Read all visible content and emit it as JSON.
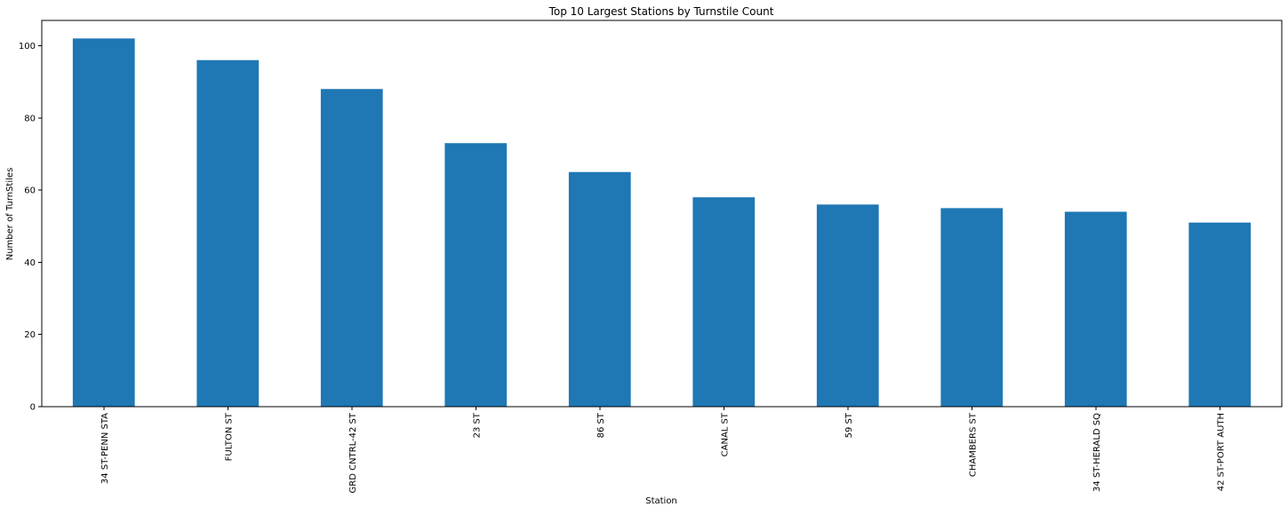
{
  "chart_data": {
    "type": "bar",
    "title": "Top 10 Largest Stations by Turnstile Count",
    "xlabel": "Station",
    "ylabel": "Number of TurnStiles",
    "categories": [
      "34 ST-PENN STA",
      "FULTON ST",
      "GRD CNTRL-42 ST",
      "23 ST",
      "86 ST",
      "CANAL ST",
      "59 ST",
      "CHAMBERS ST",
      "34 ST-HERALD SQ",
      "42 ST-PORT AUTH"
    ],
    "values": [
      102,
      96,
      88,
      73,
      65,
      58,
      56,
      55,
      54,
      51
    ],
    "ylim": [
      0,
      107
    ],
    "yticks": [
      0,
      20,
      40,
      60,
      80,
      100
    ],
    "color": "#1f77b4",
    "grid": false,
    "legend": "none"
  }
}
